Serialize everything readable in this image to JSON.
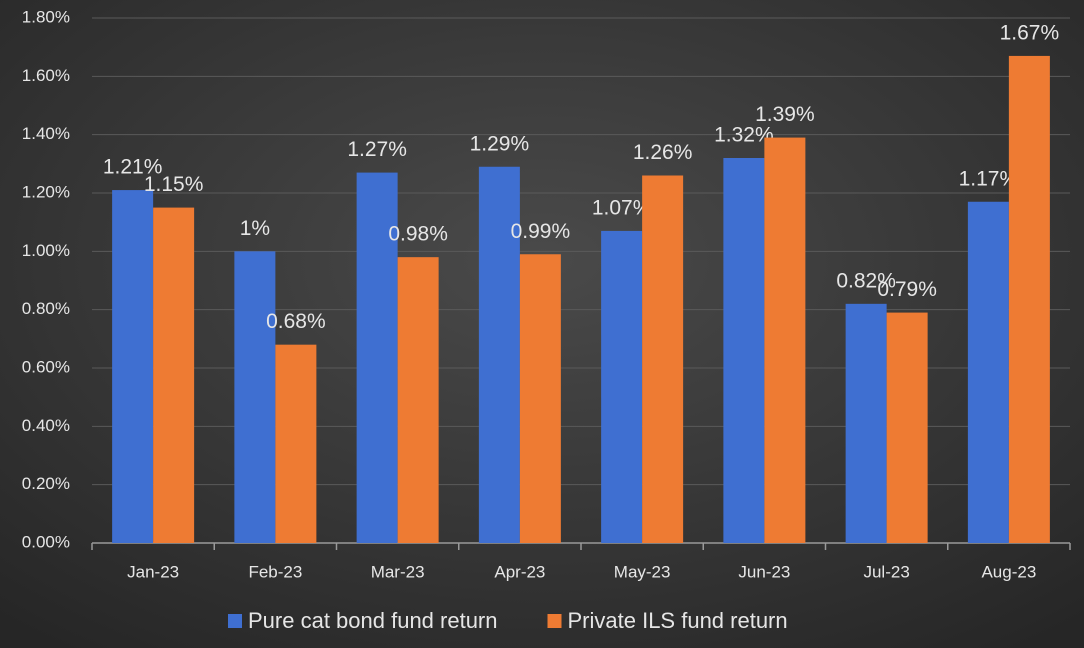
{
  "chart_data": {
    "type": "bar",
    "categories": [
      "Jan-23",
      "Feb-23",
      "Mar-23",
      "Apr-23",
      "May-23",
      "Jun-23",
      "Jul-23",
      "Aug-23"
    ],
    "series": [
      {
        "name": "Pure cat bond fund return",
        "color": "#3f6fd1",
        "values": [
          1.21,
          1,
          1.27,
          1.29,
          1.07,
          1.32,
          0.82,
          1.17
        ],
        "value_labels": [
          "1.21%",
          "1%",
          "1.27%",
          "1.29%",
          "1.07%",
          "1.32%",
          "0.82%",
          "1.17%"
        ]
      },
      {
        "name": "Private ILS fund return",
        "color": "#ee7b33",
        "values": [
          1.15,
          0.68,
          0.98,
          0.99,
          1.26,
          1.39,
          0.79,
          1.67
        ],
        "value_labels": [
          "1.15%",
          "0.68%",
          "0.98%",
          "0.99%",
          "1.26%",
          "1.39%",
          "0.79%",
          "1.67%"
        ]
      }
    ],
    "ylim": [
      0,
      1.8
    ],
    "yticks": [
      {
        "value": 0,
        "label": "0.00%"
      },
      {
        "value": 0.2,
        "label": "0.20%"
      },
      {
        "value": 0.4,
        "label": "0.40%"
      },
      {
        "value": 0.6,
        "label": "0.60%"
      },
      {
        "value": 0.8,
        "label": "0.80%"
      },
      {
        "value": 1,
        "label": "1.00%"
      },
      {
        "value": 1.2,
        "label": "1.20%"
      },
      {
        "value": 1.4,
        "label": "1.40%"
      },
      {
        "value": 1.6,
        "label": "1.60%"
      },
      {
        "value": 1.8,
        "label": "1.80%"
      }
    ],
    "grid": true,
    "legend": "bottom"
  }
}
